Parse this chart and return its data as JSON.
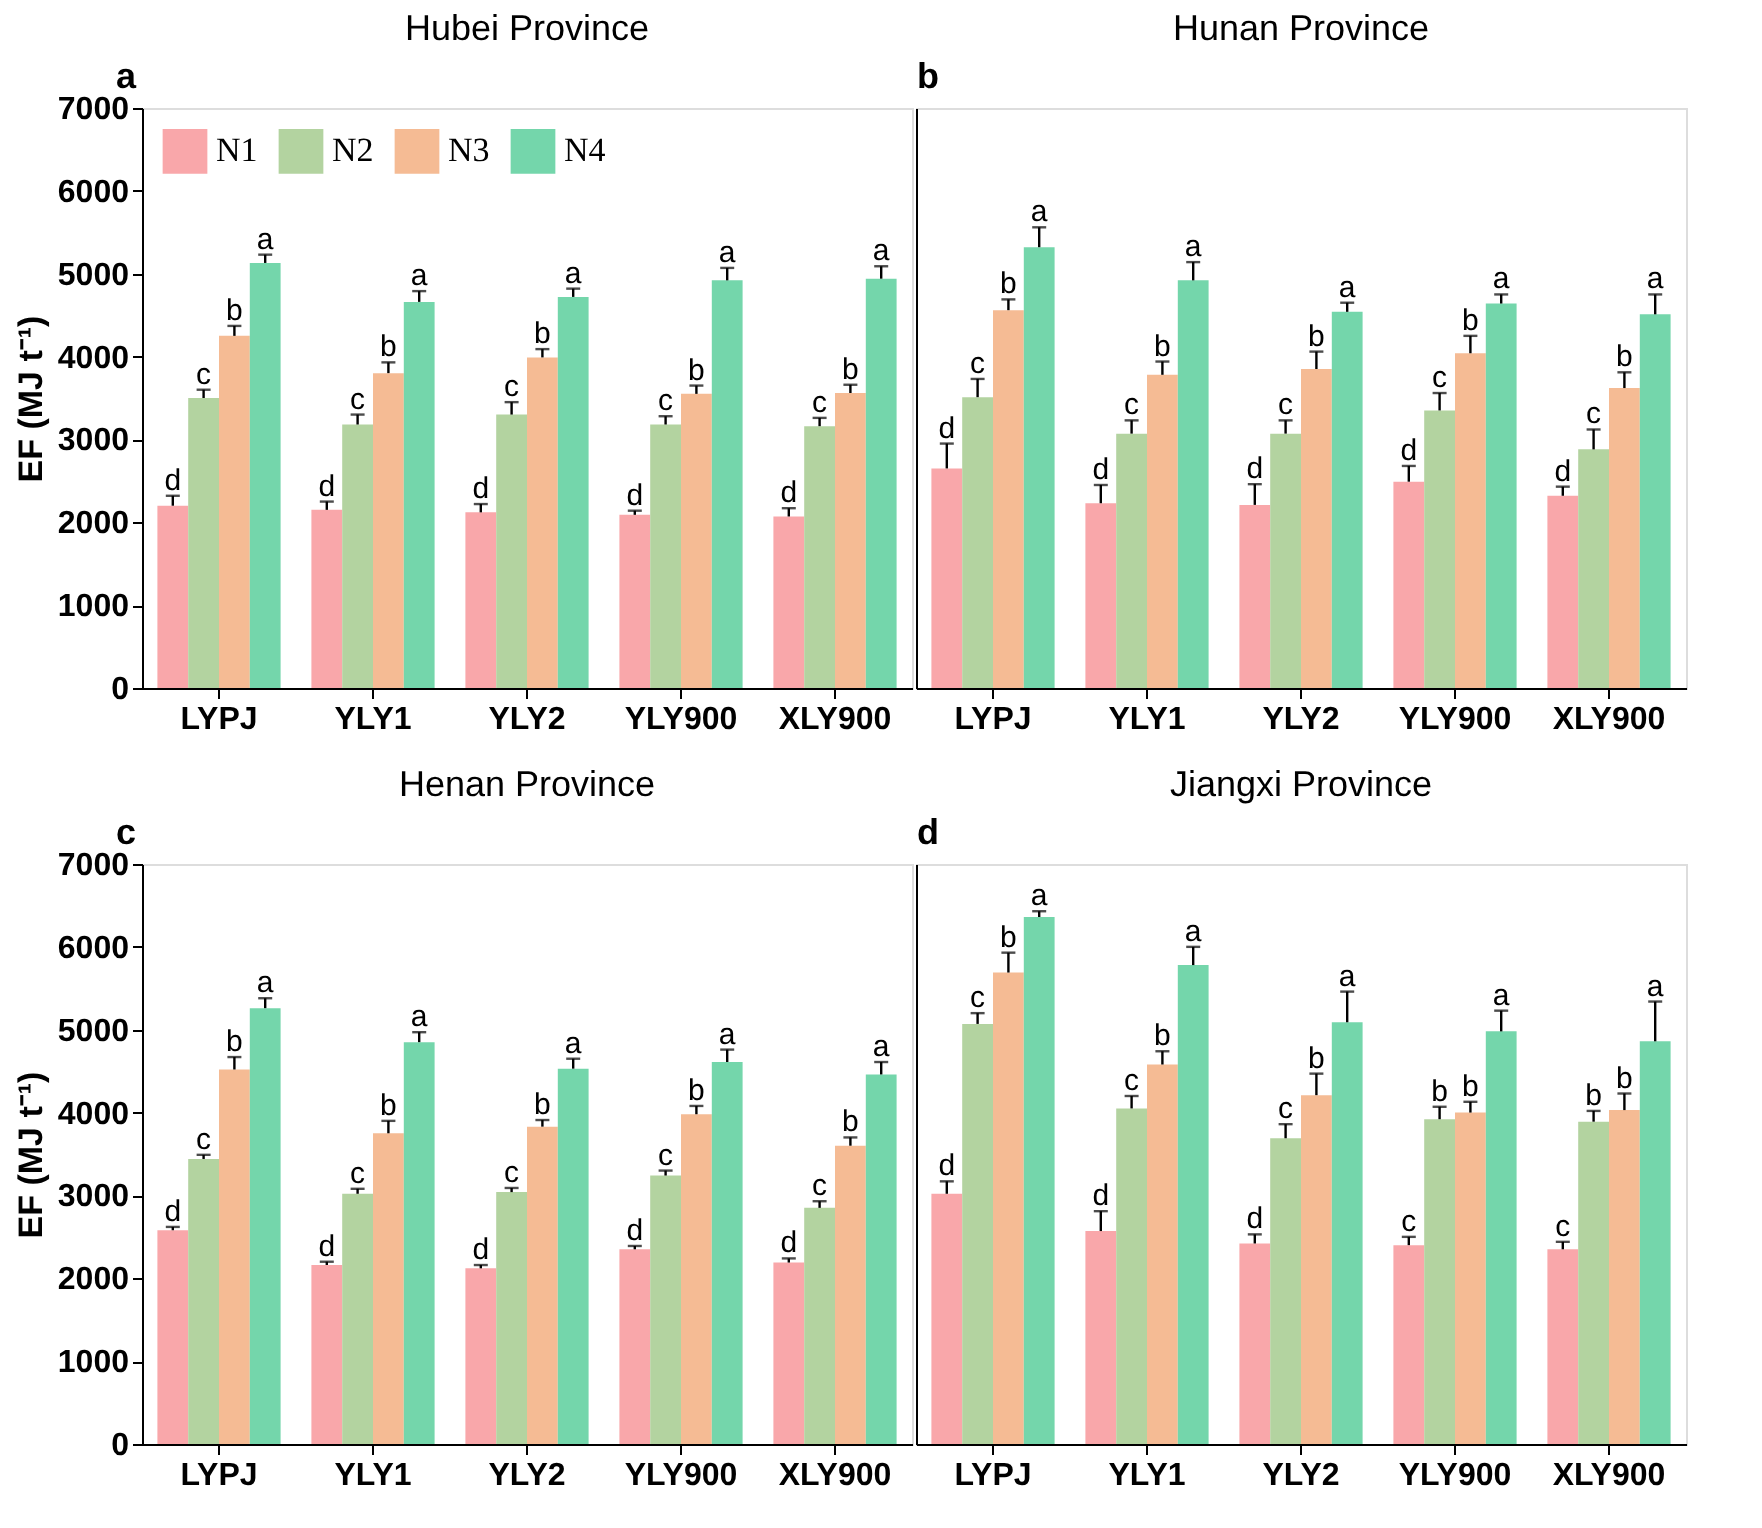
{
  "chart_data": [
    {
      "type": "bar",
      "title": "Hubei Province",
      "ylabel": "EF (MJ t⁻¹)",
      "annotations": [
        "a"
      ],
      "categories": [
        "LYPJ",
        "YLY1",
        "YLY2",
        "YLY900",
        "XLY900"
      ],
      "ylim": [
        0,
        7000
      ],
      "yticks": [
        0,
        1000,
        2000,
        3000,
        4000,
        5000,
        6000,
        7000
      ],
      "legend": "top left",
      "grid": false,
      "series": [
        {
          "name": "N1",
          "color": "#f9a7aa",
          "values": [
            2200,
            2150,
            2120,
            2090,
            2070
          ],
          "errors": [
            120,
            100,
            100,
            50,
            100
          ],
          "value_labels": [
            "d",
            "d",
            "d",
            "d",
            "d"
          ]
        },
        {
          "name": "N2",
          "color": "#b3d3a0",
          "values": [
            3500,
            3180,
            3300,
            3180,
            3160
          ],
          "errors": [
            100,
            120,
            150,
            100,
            100
          ],
          "value_labels": [
            "c",
            "c",
            "c",
            "c",
            "c"
          ]
        },
        {
          "name": "N3",
          "color": "#f5bb94",
          "values": [
            4250,
            3800,
            3990,
            3550,
            3560
          ],
          "errors": [
            120,
            130,
            100,
            100,
            100
          ],
          "value_labels": [
            "b",
            "b",
            "b",
            "b",
            "b"
          ]
        },
        {
          "name": "N4",
          "color": "#74d6ab",
          "values": [
            5130,
            4660,
            4720,
            4920,
            4940
          ],
          "errors": [
            100,
            130,
            100,
            150,
            150
          ],
          "value_labels": [
            "a",
            "a",
            "a",
            "a",
            "a"
          ]
        }
      ]
    },
    {
      "type": "bar",
      "title": "Hunan Province",
      "annotations": [
        "b"
      ],
      "categories": [
        "LYPJ",
        "YLY1",
        "YLY2",
        "YLY900",
        "XLY900"
      ],
      "ylim": [
        0,
        7000
      ],
      "yticks": [
        0,
        1000,
        2000,
        3000,
        4000,
        5000,
        6000,
        7000
      ],
      "tick_labels": "x",
      "grid": false,
      "series": [
        {
          "color": "#f9a7aa",
          "values": [
            2650,
            2230,
            2210,
            2490,
            2320
          ],
          "errors": [
            300,
            220,
            250,
            190,
            110
          ],
          "value_labels": [
            "d",
            "d",
            "d",
            "d",
            "d"
          ]
        },
        {
          "color": "#b3d3a0",
          "values": [
            3510,
            3070,
            3070,
            3350,
            2880
          ],
          "errors": [
            220,
            160,
            160,
            210,
            240
          ],
          "value_labels": [
            "c",
            "c",
            "c",
            "c",
            "c"
          ]
        },
        {
          "color": "#f5bb94",
          "values": [
            4560,
            3780,
            3850,
            4040,
            3620
          ],
          "errors": [
            130,
            160,
            210,
            210,
            190
          ],
          "value_labels": [
            "b",
            "b",
            "b",
            "b",
            "b"
          ]
        },
        {
          "color": "#74d6ab",
          "values": [
            5320,
            4920,
            4540,
            4640,
            4510
          ],
          "errors": [
            240,
            220,
            110,
            110,
            240
          ],
          "value_labels": [
            "a",
            "a",
            "a",
            "a",
            "a"
          ]
        }
      ]
    },
    {
      "type": "bar",
      "title": "Henan Province",
      "ylabel": "EF (MJ t⁻¹)",
      "annotations": [
        "c"
      ],
      "categories": [
        "LYPJ",
        "YLY1",
        "YLY2",
        "YLY900",
        "XLY900"
      ],
      "ylim": [
        0,
        7000
      ],
      "yticks": [
        0,
        1000,
        2000,
        3000,
        4000,
        5000,
        6000,
        7000
      ],
      "grid": false,
      "series": [
        {
          "color": "#f9a7aa",
          "values": [
            2580,
            2160,
            2120,
            2350,
            2190
          ],
          "errors": [
            40,
            40,
            40,
            40,
            50
          ],
          "value_labels": [
            "d",
            "d",
            "d",
            "d",
            "d"
          ]
        },
        {
          "color": "#b3d3a0",
          "values": [
            3440,
            3020,
            3040,
            3240,
            2850
          ],
          "errors": [
            50,
            60,
            50,
            60,
            80
          ],
          "value_labels": [
            "c",
            "c",
            "c",
            "c",
            "c"
          ]
        },
        {
          "color": "#f5bb94",
          "values": [
            4520,
            3750,
            3830,
            3980,
            3600
          ],
          "errors": [
            150,
            150,
            80,
            100,
            100
          ],
          "value_labels": [
            "b",
            "b",
            "b",
            "b",
            "b"
          ]
        },
        {
          "color": "#74d6ab",
          "values": [
            5260,
            4850,
            4530,
            4610,
            4460
          ],
          "errors": [
            120,
            120,
            120,
            150,
            150
          ],
          "value_labels": [
            "a",
            "a",
            "a",
            "a",
            "a"
          ]
        }
      ]
    },
    {
      "type": "bar",
      "title": "Jiangxi Province",
      "annotations": [
        "d"
      ],
      "categories": [
        "LYPJ",
        "YLY1",
        "YLY2",
        "YLY900",
        "XLY900"
      ],
      "ylim": [
        0,
        7000
      ],
      "yticks": [
        0,
        1000,
        2000,
        3000,
        4000,
        5000,
        6000,
        7000
      ],
      "tick_labels": "x",
      "grid": false,
      "series": [
        {
          "color": "#f9a7aa",
          "values": [
            3020,
            2570,
            2420,
            2400,
            2350
          ],
          "errors": [
            150,
            240,
            110,
            100,
            90
          ],
          "value_labels": [
            "d",
            "d",
            "d",
            "c",
            "c"
          ]
        },
        {
          "color": "#b3d3a0",
          "values": [
            5070,
            4050,
            3690,
            3920,
            3890
          ],
          "errors": [
            130,
            150,
            170,
            150,
            130
          ],
          "value_labels": [
            "c",
            "c",
            "c",
            "b",
            "b"
          ]
        },
        {
          "color": "#f5bb94",
          "values": [
            5690,
            4580,
            4210,
            4000,
            4030
          ],
          "errors": [
            240,
            160,
            260,
            130,
            200
          ],
          "value_labels": [
            "b",
            "b",
            "b",
            "b",
            "b"
          ]
        },
        {
          "color": "#74d6ab",
          "values": [
            6360,
            5780,
            5090,
            4980,
            4860
          ],
          "errors": [
            70,
            220,
            370,
            250,
            480
          ],
          "value_labels": [
            "a",
            "a",
            "a",
            "a",
            "a"
          ]
        }
      ]
    }
  ]
}
